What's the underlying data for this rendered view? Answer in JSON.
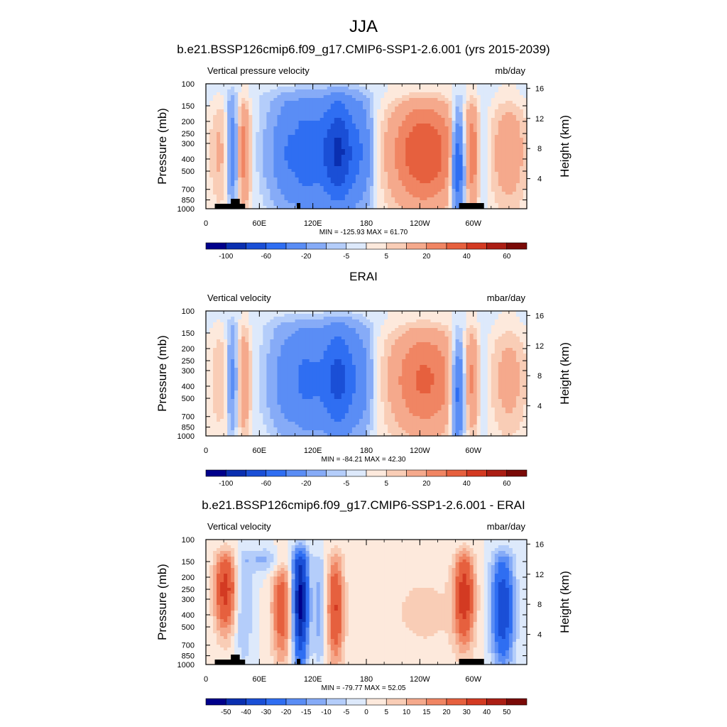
{
  "figure_title": "JJA",
  "chart_data": [
    {
      "type": "heatmap",
      "title": "b.e21.BSSP126cmip6.f09_g17.CMIP6-SSP1-2.6.001 (yrs 2015-2039)",
      "left_label": "Vertical pressure velocity",
      "units": "mb/day",
      "ylabel": "Pressure (mb)",
      "ylabel_right": "Height (km)",
      "x_ticks": [
        "0",
        "60E",
        "120E",
        "180",
        "120W",
        "60W"
      ],
      "y_ticks": [
        "100",
        "150",
        "200",
        "250",
        "300",
        "400",
        "500",
        "700",
        "850",
        "1000"
      ],
      "height_ticks": [
        "4",
        "8",
        "12",
        "16"
      ],
      "stats": "MIN = -125.93  MAX =  61.70",
      "colorbar_labels": [
        "-100",
        "-60",
        "-20",
        "-5",
        "5",
        "20",
        "40",
        "60"
      ],
      "xlim": [
        0,
        360
      ],
      "ylim": [
        1000,
        100
      ],
      "y_scale": "log",
      "min": -125.93,
      "max": 61.7
    },
    {
      "type": "heatmap",
      "title": "ERAI",
      "left_label": "Vertical velocity",
      "units": "mbar/day",
      "ylabel": "Pressure (mb)",
      "ylabel_right": "Height (km)",
      "x_ticks": [
        "0",
        "60E",
        "120E",
        "180",
        "120W",
        "60W"
      ],
      "y_ticks": [
        "100",
        "150",
        "200",
        "250",
        "300",
        "400",
        "500",
        "700",
        "850",
        "1000"
      ],
      "height_ticks": [
        "4",
        "8",
        "12",
        "16"
      ],
      "stats": "MIN = -84.21  MAX =  42.30",
      "colorbar_labels": [
        "-100",
        "-60",
        "-20",
        "-5",
        "5",
        "20",
        "40",
        "60"
      ],
      "xlim": [
        0,
        360
      ],
      "ylim": [
        1000,
        100
      ],
      "y_scale": "log",
      "min": -84.21,
      "max": 42.3
    },
    {
      "type": "heatmap",
      "title": "b.e21.BSSP126cmip6.f09_g17.CMIP6-SSP1-2.6.001 - ERAI",
      "left_label": "Vertical velocity",
      "units": "mbar/day",
      "ylabel": "Pressure (mb)",
      "ylabel_right": "Height (km)",
      "x_ticks": [
        "0",
        "60E",
        "120E",
        "180",
        "120W",
        "60W"
      ],
      "y_ticks": [
        "100",
        "150",
        "200",
        "250",
        "300",
        "400",
        "500",
        "700",
        "850",
        "1000"
      ],
      "height_ticks": [
        "4",
        "8",
        "12",
        "16"
      ],
      "stats": "MIN = -79.77  MAX =  52.05",
      "colorbar_labels": [
        "-50",
        "-40",
        "-30",
        "-20",
        "-15",
        "-10",
        "-5",
        "0",
        "5",
        "10",
        "15",
        "20",
        "30",
        "40",
        "50"
      ],
      "xlim": [
        0,
        360
      ],
      "ylim": [
        1000,
        100
      ],
      "y_scale": "log",
      "min": -79.77,
      "max": 52.05
    }
  ],
  "colors": {
    "levels_16": [
      "#00008b",
      "#0a2fb0",
      "#1a4fd6",
      "#2f6ef2",
      "#5a8df5",
      "#86abf7",
      "#b4cdfa",
      "#dde9fb",
      "#fde9dc",
      "#f9cdb6",
      "#f5a98c",
      "#f08563",
      "#e6603e",
      "#d33a22",
      "#ab1e14",
      "#7a0a07"
    ]
  }
}
